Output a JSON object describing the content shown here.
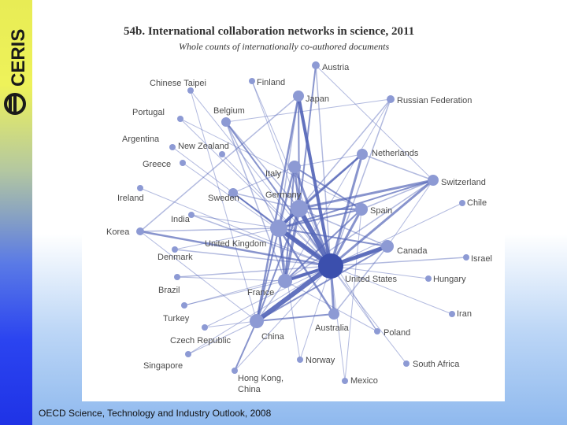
{
  "slide": {
    "logo_text": "CERIS",
    "footer": "OECD Science, Technology and Industry Outlook, 2008"
  },
  "diagram": {
    "title": "54b. International collaboration networks in science, 2011",
    "subtitle": "Whole counts of internationally co-authored documents",
    "colors": {
      "edge": "#5566b8",
      "node": "#8d9ad4",
      "hub": "#3b4fad",
      "text": "#4a4a4a"
    },
    "nodes": [
      {
        "id": "austria",
        "label": "Austria"
      },
      {
        "id": "chinese_taipei",
        "label": "Chinese Taipei"
      },
      {
        "id": "finland",
        "label": "Finland"
      },
      {
        "id": "japan",
        "label": "Japan"
      },
      {
        "id": "russia",
        "label": "Russian Federation"
      },
      {
        "id": "portugal",
        "label": "Portugal"
      },
      {
        "id": "belgium",
        "label": "Belgium"
      },
      {
        "id": "argentina",
        "label": "Argentina"
      },
      {
        "id": "new_zealand",
        "label": "New Zealand"
      },
      {
        "id": "netherlands",
        "label": "Netherlands"
      },
      {
        "id": "greece",
        "label": "Greece"
      },
      {
        "id": "italy",
        "label": "Italy"
      },
      {
        "id": "switzerland",
        "label": "Switzerland"
      },
      {
        "id": "ireland",
        "label": "Ireland"
      },
      {
        "id": "sweden",
        "label": "Sweden"
      },
      {
        "id": "germany",
        "label": "Germany"
      },
      {
        "id": "chile",
        "label": "Chile"
      },
      {
        "id": "spain",
        "label": "Spain"
      },
      {
        "id": "india",
        "label": "India"
      },
      {
        "id": "korea",
        "label": "Korea"
      },
      {
        "id": "uk",
        "label": "United Kingdom"
      },
      {
        "id": "canada",
        "label": "Canada"
      },
      {
        "id": "denmark",
        "label": "Denmark"
      },
      {
        "id": "israel",
        "label": "Israel"
      },
      {
        "id": "us",
        "label": "United States"
      },
      {
        "id": "hungary",
        "label": "Hungary"
      },
      {
        "id": "brazil",
        "label": "Brazil"
      },
      {
        "id": "france",
        "label": "France"
      },
      {
        "id": "iran",
        "label": "Iran"
      },
      {
        "id": "turkey",
        "label": "Turkey"
      },
      {
        "id": "australia",
        "label": "Australia"
      },
      {
        "id": "poland",
        "label": "Poland"
      },
      {
        "id": "czech",
        "label": "Czech Republic"
      },
      {
        "id": "china",
        "label": "China"
      },
      {
        "id": "norway",
        "label": "Norway"
      },
      {
        "id": "south_africa",
        "label": "South Africa"
      },
      {
        "id": "singapore",
        "label": "Singapore"
      },
      {
        "id": "hong_kong",
        "label": "Hong Kong, China"
      },
      {
        "id": "mexico",
        "label": "Mexico"
      }
    ]
  }
}
